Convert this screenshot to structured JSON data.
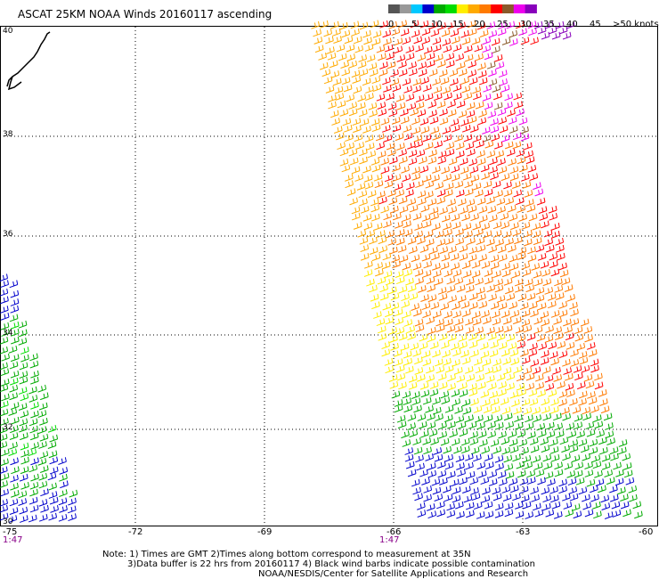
{
  "title": "ASCAT 25KM NOAA Winds 20160117 ascending",
  "legend": {
    "labels": [
      "0",
      "5",
      "10",
      "15",
      "20",
      "25",
      "30",
      "35",
      "40",
      "45",
      ">50 knots"
    ],
    "colors": [
      "#555555",
      "#999999",
      "#00c8ff",
      "#0000cc",
      "#00aa00",
      "#00dd00",
      "#ffee00",
      "#ffaa00",
      "#ff7a00",
      "#ff0000",
      "#8b5a2b",
      "#ee00ee",
      "#8800bb"
    ]
  },
  "axes": {
    "x_labels": [
      "-75",
      "-72",
      "-69",
      "-66",
      "-63",
      "-60"
    ],
    "y_labels": [
      "40",
      "38",
      "36",
      "34",
      "32",
      "30"
    ]
  },
  "pass_times": [
    "1:47",
    "1:47"
  ],
  "notes": {
    "line1": "Note: 1) Times are GMT 2)Times along bottom correspond to measurement at 35N",
    "line2": "3)Data buffer is 22 hrs from 20160117 4) Black wind barbs indicate possible contamination",
    "line3": "NOAA/NESDIS/Center for Satellite Applications and Research"
  }
}
